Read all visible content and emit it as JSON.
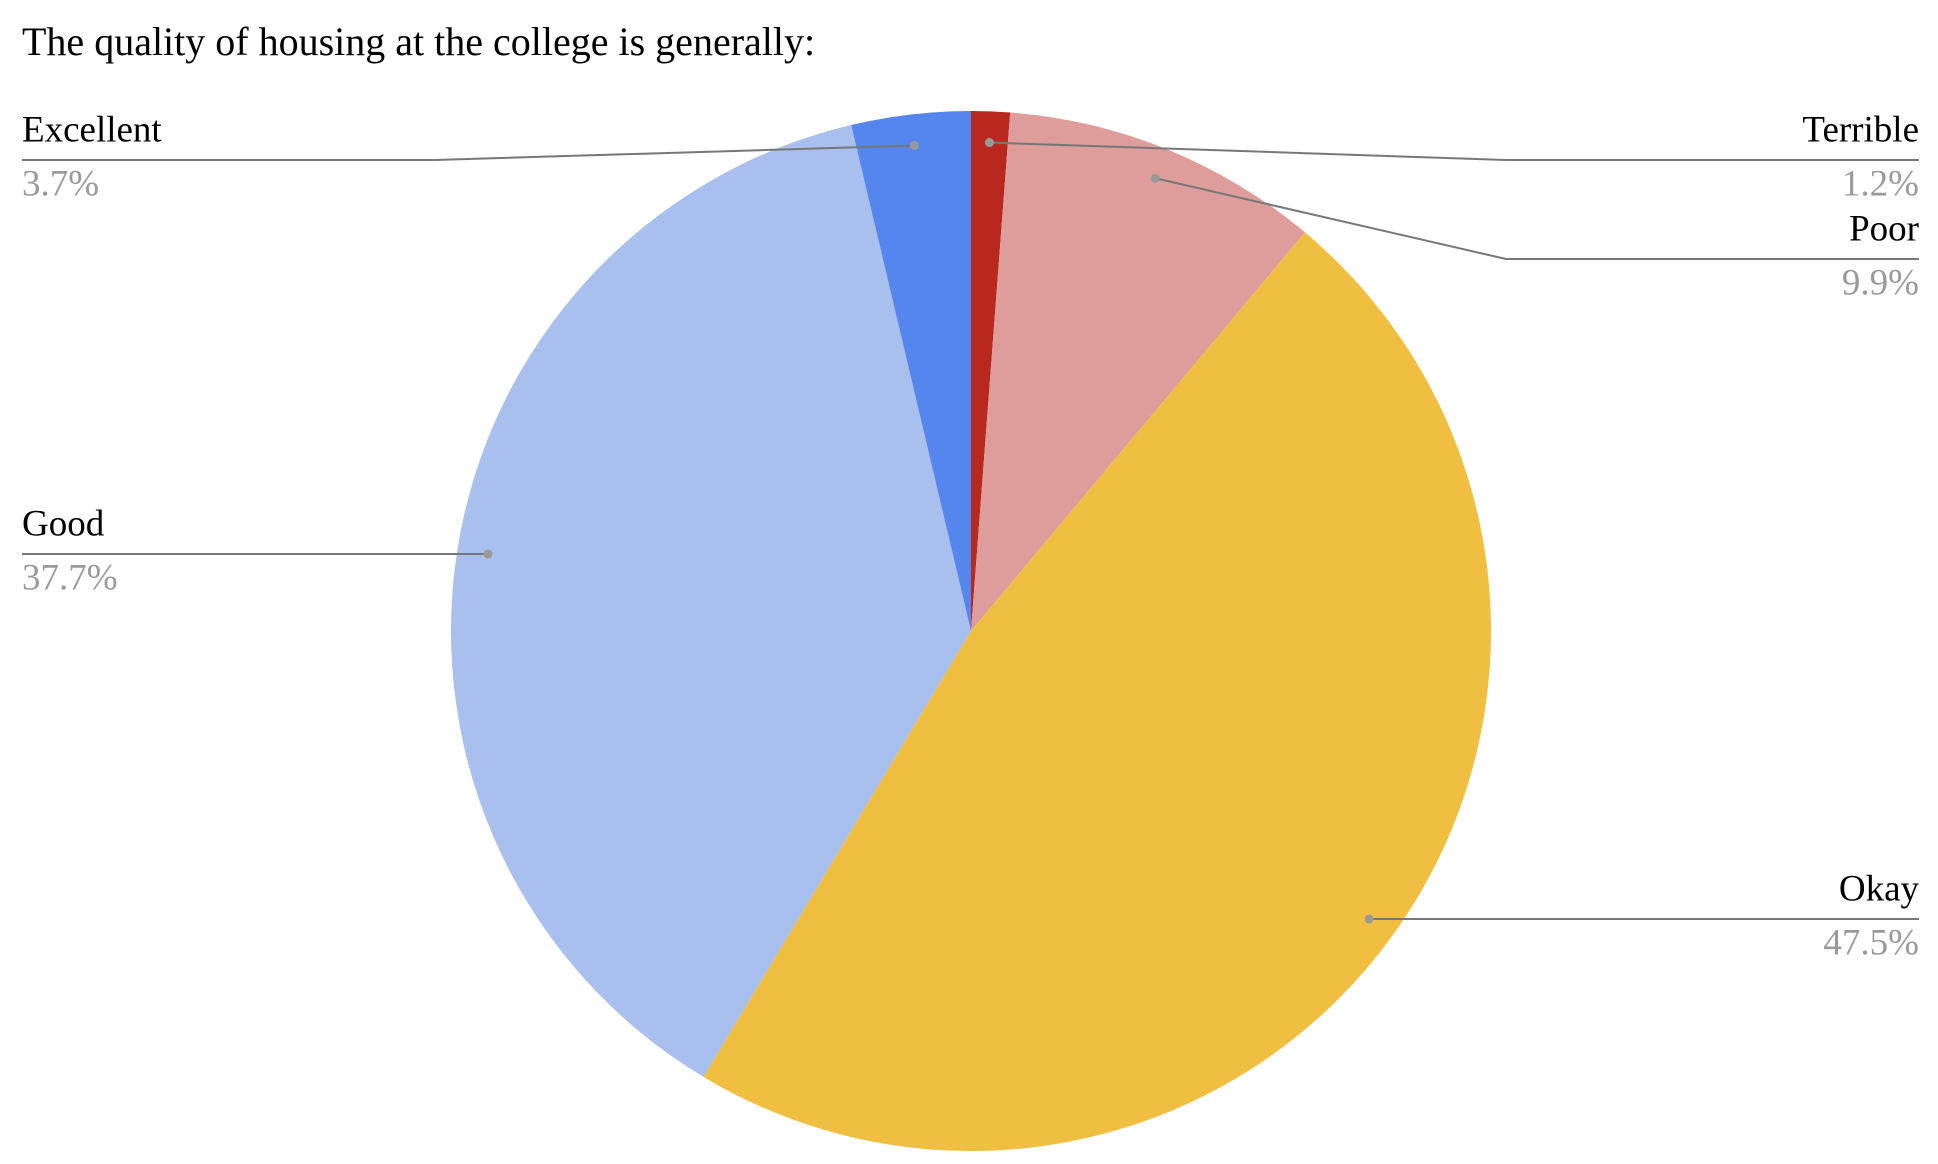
{
  "chart_data": {
    "type": "pie",
    "title": "The quality of housing at the college is generally:",
    "categories": [
      "Terrible",
      "Poor",
      "Okay",
      "Good",
      "Excellent"
    ],
    "values": [
      1.2,
      9.9,
      47.5,
      37.7,
      3.7
    ],
    "value_labels": [
      "1.2%",
      "9.9%",
      "47.5%",
      "37.7%",
      "3.7%"
    ],
    "colors": [
      "#b8281f",
      "#de9c9b",
      "#f0bf42",
      "#a9c0ee",
      "#5586ee"
    ]
  }
}
